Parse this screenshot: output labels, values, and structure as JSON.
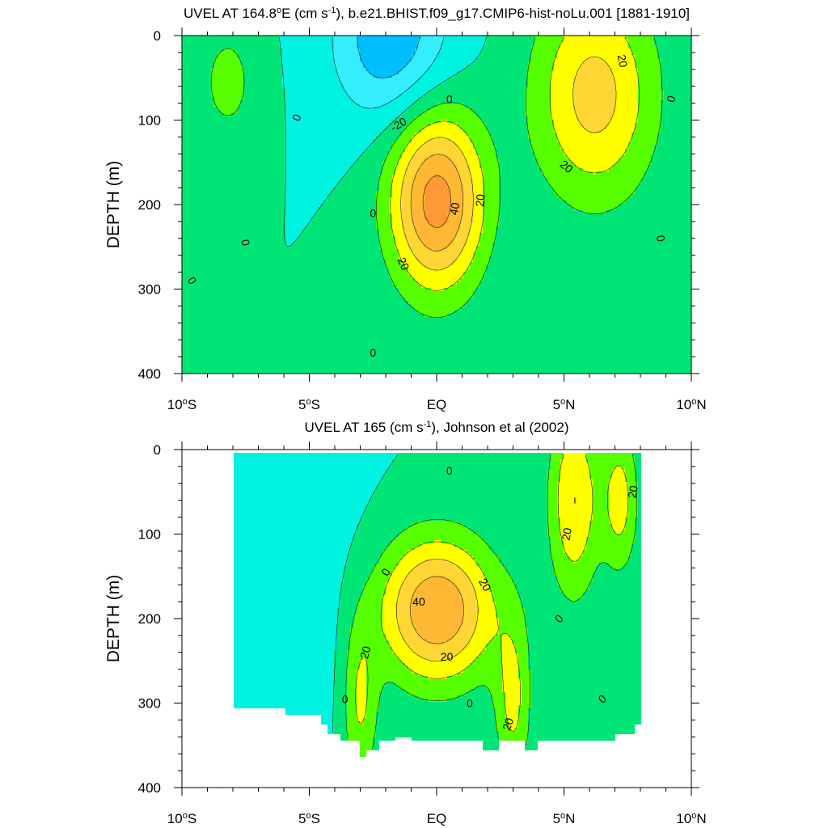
{
  "chart_data": [
    {
      "type": "contour",
      "title": {
        "pre": "UVEL AT 164.8",
        "sup1": "o",
        "mid": "E (cm s",
        "sup2": "-1",
        "post": "), b.e21.BHIST.f09_g17.CMIP6-hist-noLu.001 [1881-1910]"
      },
      "ylabel": "DEPTH (m)",
      "xlabel": "",
      "xlim": [
        -10,
        10
      ],
      "ylim": [
        400,
        0
      ],
      "x_ticks": [
        {
          "v": -10,
          "label": "10",
          "sup": "o",
          "suffix": "S"
        },
        {
          "v": -5,
          "label": "5",
          "sup": "o",
          "suffix": "S"
        },
        {
          "v": 0,
          "label": "EQ",
          "sup": "",
          "suffix": ""
        },
        {
          "v": 5,
          "label": "5",
          "sup": "o",
          "suffix": "N"
        },
        {
          "v": 10,
          "label": "10",
          "sup": "o",
          "suffix": "N"
        }
      ],
      "y_ticks": [
        {
          "v": 0,
          "label": "0"
        },
        {
          "v": 100,
          "label": "100"
        },
        {
          "v": 200,
          "label": "200"
        },
        {
          "v": 300,
          "label": "300"
        },
        {
          "v": 400,
          "label": "400"
        }
      ],
      "contour_interval": 10,
      "level_colors": [
        {
          "min": -40,
          "max": -30,
          "color": "#00bfff"
        },
        {
          "min": -30,
          "max": -20,
          "color": "#00bfff"
        },
        {
          "min": -20,
          "max": -10,
          "color": "#33eeff"
        },
        {
          "min": -10,
          "max": 0,
          "color": "#00f2e0"
        },
        {
          "min": 0,
          "max": 10,
          "color": "#00e676"
        },
        {
          "min": 10,
          "max": 20,
          "color": "#55ff00"
        },
        {
          "min": 20,
          "max": 30,
          "color": "#ffff00"
        },
        {
          "min": 30,
          "max": 40,
          "color": "#ffd633"
        },
        {
          "min": 40,
          "max": 50,
          "color": "#ffb833"
        },
        {
          "min": 50,
          "max": 60,
          "color": "#ff9933"
        }
      ],
      "field_features": [
        {
          "kind": "jet",
          "name": "EUC core",
          "lat": 0.0,
          "depth": 195,
          "peak": 55,
          "lat_width": 1.3,
          "depth_width": 75
        },
        {
          "kind": "jet",
          "lat": 6.2,
          "depth": 70,
          "peak": 34,
          "lat_width": 1.7,
          "depth_width": 90
        },
        {
          "kind": "jet",
          "lat": -8.2,
          "depth": 55,
          "peak": 13,
          "lat_width": 0.9,
          "depth_width": 55
        },
        {
          "kind": "jet",
          "lat": -1.8,
          "depth": 5,
          "peak": -28,
          "lat_width": 1.6,
          "depth_width": 70
        }
      ],
      "contour_labels": [
        {
          "text": "-20",
          "lat": -1.5,
          "depth": 105,
          "angle": -30
        },
        {
          "text": "0",
          "lat": 0.5,
          "depth": 75,
          "angle": 0
        },
        {
          "text": "0",
          "lat": -5.5,
          "depth": 97,
          "angle": -70
        },
        {
          "text": "0",
          "lat": -7.5,
          "depth": 245,
          "angle": 80
        },
        {
          "text": "0",
          "lat": -9.6,
          "depth": 290,
          "angle": 60
        },
        {
          "text": "0",
          "lat": -2.5,
          "depth": 210,
          "angle": 0
        },
        {
          "text": "0",
          "lat": -2.5,
          "depth": 375,
          "angle": 0
        },
        {
          "text": "40",
          "lat": 0.7,
          "depth": 205,
          "angle": -80
        },
        {
          "text": "20",
          "lat": 1.7,
          "depth": 195,
          "angle": -85
        },
        {
          "text": "20",
          "lat": -1.3,
          "depth": 270,
          "angle": 65
        },
        {
          "text": "20",
          "lat": 7.3,
          "depth": 30,
          "angle": 80
        },
        {
          "text": "20",
          "lat": 5.1,
          "depth": 155,
          "angle": 40
        },
        {
          "text": "0",
          "lat": 9.2,
          "depth": 75,
          "angle": -70
        },
        {
          "text": "0",
          "lat": 8.8,
          "depth": 240,
          "angle": 80
        }
      ]
    },
    {
      "type": "contour",
      "title": {
        "pre": "UVEL AT 165 (cm s",
        "sup1": "",
        "mid": "",
        "sup2": "-1",
        "post": "), Johnson et al (2002)"
      },
      "ylabel": "DEPTH (m)",
      "xlabel": "",
      "xlim": [
        -10,
        10
      ],
      "ylim": [
        400,
        0
      ],
      "x_ticks": [
        {
          "v": -10,
          "label": "10",
          "sup": "o",
          "suffix": "S"
        },
        {
          "v": -5,
          "label": "5",
          "sup": "o",
          "suffix": "S"
        },
        {
          "v": 0,
          "label": "EQ",
          "sup": "",
          "suffix": ""
        },
        {
          "v": 5,
          "label": "5",
          "sup": "o",
          "suffix": "N"
        },
        {
          "v": 10,
          "label": "10",
          "sup": "o",
          "suffix": "N"
        }
      ],
      "y_ticks": [
        {
          "v": 0,
          "label": "0"
        },
        {
          "v": 100,
          "label": "100"
        },
        {
          "v": 200,
          "label": "200"
        },
        {
          "v": 300,
          "label": "300"
        },
        {
          "v": 400,
          "label": "400"
        }
      ],
      "contour_interval": 10,
      "data_extent": {
        "lat": [
          -8,
          8
        ],
        "depth": [
          5,
          365
        ]
      },
      "missing_below": [
        [
          -8.0,
          305
        ],
        [
          -6.5,
          305
        ],
        [
          -6.0,
          315
        ],
        [
          -5.0,
          315
        ],
        [
          -4.6,
          325
        ],
        [
          -4.3,
          335
        ],
        [
          -3.8,
          345
        ],
        [
          -3.3,
          345
        ],
        [
          -3.0,
          365
        ],
        [
          -2.7,
          355
        ],
        [
          -2.2,
          345
        ],
        [
          -1.6,
          340
        ],
        [
          -1.0,
          345
        ],
        [
          1.0,
          345
        ],
        [
          1.8,
          355
        ],
        [
          2.5,
          345
        ],
        [
          3.5,
          355
        ],
        [
          4.0,
          345
        ],
        [
          6.5,
          345
        ],
        [
          7.0,
          335
        ],
        [
          7.8,
          325
        ],
        [
          8.0,
          305
        ]
      ],
      "level_colors": [
        {
          "min": -40,
          "max": -30,
          "color": "#00bfff"
        },
        {
          "min": -30,
          "max": -20,
          "color": "#00bfff"
        },
        {
          "min": -20,
          "max": -10,
          "color": "#33eeff"
        },
        {
          "min": -10,
          "max": 0,
          "color": "#00f2e0"
        },
        {
          "min": 0,
          "max": 10,
          "color": "#00e676"
        },
        {
          "min": 10,
          "max": 20,
          "color": "#55ff00"
        },
        {
          "min": 20,
          "max": 30,
          "color": "#ffff00"
        },
        {
          "min": 30,
          "max": 40,
          "color": "#ffd633"
        },
        {
          "min": 40,
          "max": 50,
          "color": "#ffb833"
        },
        {
          "min": 50,
          "max": 60,
          "color": "#ff9933"
        }
      ],
      "field_features": [
        {
          "kind": "jet",
          "name": "EUC core",
          "lat": 0.0,
          "depth": 190,
          "peak": 50,
          "lat_width": 1.6,
          "depth_width": 60
        },
        {
          "kind": "jet",
          "lat": 5.4,
          "depth": 60,
          "peak": 30,
          "lat_width": 0.7,
          "depth_width": 80
        },
        {
          "kind": "jet",
          "lat": 7.2,
          "depth": 60,
          "peak": 24,
          "lat_width": 0.5,
          "depth_width": 60
        },
        {
          "kind": "jet",
          "lat": -3.0,
          "depth": 300,
          "peak": 22,
          "lat_width": 0.5,
          "depth_width": 70
        },
        {
          "kind": "jet",
          "lat": 3.0,
          "depth": 300,
          "peak": 22,
          "lat_width": 0.5,
          "depth_width": 70
        },
        {
          "kind": "jet",
          "lat": -5.5,
          "depth": 180,
          "peak": -6,
          "lat_width": 2.0,
          "depth_width": 120
        }
      ],
      "contour_labels": [
        {
          "text": "0",
          "lat": 0.5,
          "depth": 25,
          "angle": 0
        },
        {
          "text": "40",
          "lat": -0.7,
          "depth": 180,
          "angle": 0
        },
        {
          "text": "20",
          "lat": 1.9,
          "depth": 160,
          "angle": 60
        },
        {
          "text": "20",
          "lat": 0.4,
          "depth": 245,
          "angle": 0
        },
        {
          "text": "20",
          "lat": -2.8,
          "depth": 240,
          "angle": -75
        },
        {
          "text": "0",
          "lat": -2.0,
          "depth": 145,
          "angle": -60
        },
        {
          "text": "0",
          "lat": -3.6,
          "depth": 295,
          "angle": 0
        },
        {
          "text": "0",
          "lat": 1.3,
          "depth": 300,
          "angle": 0
        },
        {
          "text": "20",
          "lat": 2.8,
          "depth": 325,
          "angle": -70
        },
        {
          "text": "20",
          "lat": 5.1,
          "depth": 100,
          "angle": -80
        },
        {
          "text": "20",
          "lat": 7.7,
          "depth": 50,
          "angle": -80
        },
        {
          "text": "0",
          "lat": 4.8,
          "depth": 200,
          "angle": -50
        },
        {
          "text": "0",
          "lat": 6.5,
          "depth": 295,
          "angle": -40
        }
      ]
    }
  ]
}
